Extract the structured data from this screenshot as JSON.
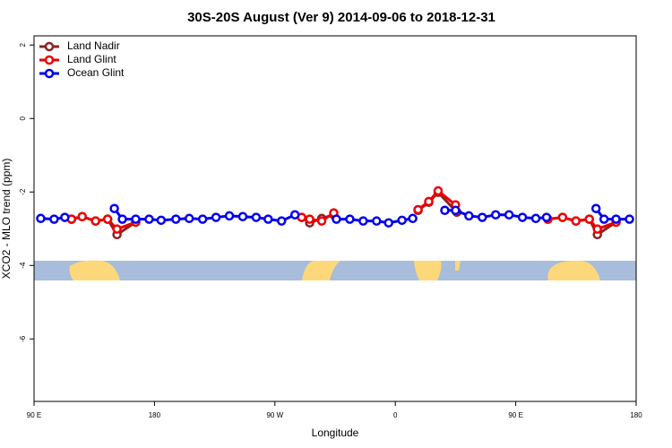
{
  "chart_data": {
    "type": "line",
    "title": "30S-20S August (Ver 9)   2014-09-06 to 2018-12-31",
    "x_label": "Longitude",
    "y_label": "XCO2 - MLO trend (ppm)",
    "xlim": [
      90,
      540
    ],
    "ylim": [
      -7.7,
      2.25
    ],
    "xticks": [
      {
        "value": 90,
        "label": "90 E"
      },
      180,
      {
        "value": 270,
        "label": "90 W"
      },
      {
        "value": 360,
        "label": "0"
      },
      {
        "value": 450,
        "label": "90 E"
      },
      {
        "value": 540,
        "label": "180"
      }
    ],
    "yticks": [
      -6,
      -4,
      -2,
      0,
      2
    ],
    "legend": "top-left",
    "series": [
      {
        "name": "Land Nadir",
        "color": "#8b2323",
        "x": [
          118,
          126,
          136,
          145,
          152,
          166,
          null,
          290,
          296,
          305,
          314,
          null,
          377,
          385,
          392,
          406,
          null,
          474,
          485,
          495,
          505,
          511,
          525
        ],
        "values": [
          -2.74,
          -2.67,
          -2.79,
          -2.74,
          -3.16,
          -2.82,
          null,
          -2.69,
          -2.84,
          -2.72,
          -2.62,
          null,
          -2.5,
          -2.28,
          -2.01,
          -2.55,
          null,
          -2.74,
          -2.69,
          -2.79,
          -2.74,
          -3.16,
          -2.82
        ]
      },
      {
        "name": "Land Glint",
        "color": "#ee0000",
        "x": [
          118,
          126,
          136,
          145,
          152,
          166,
          null,
          290,
          296,
          305,
          314,
          null,
          377,
          385,
          392,
          405,
          null,
          474,
          485,
          495,
          505,
          511,
          525
        ],
        "values": [
          -2.74,
          -2.67,
          -2.79,
          -2.74,
          -3.01,
          -2.82,
          null,
          -2.69,
          -2.74,
          -2.79,
          -2.57,
          null,
          -2.48,
          -2.26,
          -1.97,
          -2.35,
          null,
          -2.74,
          -2.69,
          -2.79,
          -2.74,
          -3.01,
          -2.82
        ]
      },
      {
        "name": "Ocean Glint",
        "color": "#0000ee",
        "x": [
          95,
          105,
          113,
          null,
          150,
          156,
          166,
          176,
          185,
          196,
          206,
          216,
          226,
          236,
          246,
          256,
          265,
          275,
          285,
          null,
          316,
          326,
          336,
          346,
          355,
          365,
          373,
          null,
          397,
          405,
          415,
          425,
          435,
          445,
          455,
          465,
          473,
          null,
          510,
          516,
          525,
          535
        ],
        "values": [
          -2.72,
          -2.74,
          -2.69,
          null,
          -2.45,
          -2.74,
          -2.74,
          -2.74,
          -2.77,
          -2.74,
          -2.72,
          -2.74,
          -2.69,
          -2.65,
          -2.67,
          -2.69,
          -2.74,
          -2.79,
          -2.62,
          null,
          -2.74,
          -2.74,
          -2.79,
          -2.79,
          -2.84,
          -2.77,
          -2.72,
          null,
          -2.5,
          -2.5,
          -2.65,
          -2.69,
          -2.62,
          -2.62,
          -2.69,
          -2.72,
          -2.69,
          null,
          -2.45,
          -2.74,
          -2.74,
          -2.74
        ]
      }
    ]
  }
}
